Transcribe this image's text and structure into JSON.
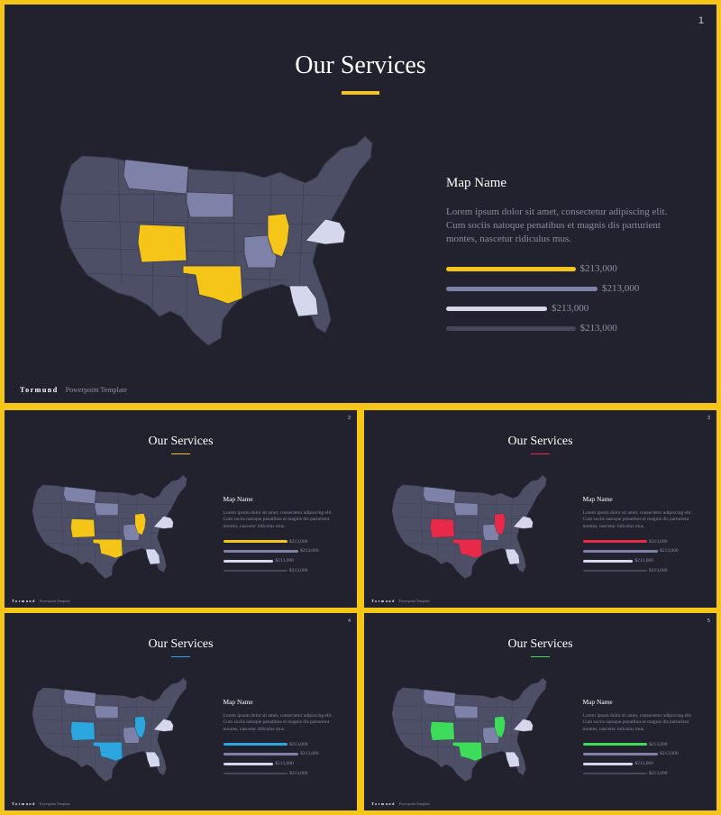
{
  "colors": {
    "background": "#f5c518",
    "slide_bg": "#21222e",
    "state_base": "#4d4f66",
    "state_border": "#393b4f",
    "state_muted": "#7f82a8",
    "state_light": "#d5d8ec",
    "bar_muted": "#7f82a8",
    "bar_light": "#d5d8ec",
    "bar_dark": "#464859"
  },
  "slides": [
    {
      "number": "1",
      "title": "Our Services",
      "accent": "#f5c518",
      "map_name": "Map Name",
      "description": "Lorem ipsum dolor sit amet, consectetur adipiscing elit. Cum sociis natoque penatibus et magnis dis parturient montes, nascetur ridiculus mus.",
      "bars": [
        {
          "value": "$213,000",
          "fraction": 0.82,
          "color": "accent"
        },
        {
          "value": "$213,000",
          "fraction": 0.96,
          "color": "muted"
        },
        {
          "value": "$213,000",
          "fraction": 0.64,
          "color": "light"
        },
        {
          "value": "$213,000",
          "fraction": 0.82,
          "color": "dark"
        }
      ],
      "brand": "Tormund",
      "brand_sub": "Powerpoint Template"
    },
    {
      "number": "2",
      "title": "Our Services",
      "accent": "#f5c518",
      "map_name": "Map Name",
      "description": "Lorem ipsum dolor sit amet, consectetur adipiscing elit. Cum sociis natoque penatibus et magnis dis parturient montes, nascetur ridiculus mus.",
      "bars": [
        {
          "value": "$213,000",
          "fraction": 0.82,
          "color": "accent"
        },
        {
          "value": "$213,000",
          "fraction": 0.96,
          "color": "muted"
        },
        {
          "value": "$213,000",
          "fraction": 0.64,
          "color": "light"
        },
        {
          "value": "$213,000",
          "fraction": 0.82,
          "color": "dark"
        }
      ],
      "brand": "Tormund",
      "brand_sub": "Powerpoint Template"
    },
    {
      "number": "3",
      "title": "Our Services",
      "accent": "#e8294a",
      "map_name": "Map Name",
      "description": "Lorem ipsum dolor sit amet, consectetur adipiscing elit. Cum sociis natoque penatibus et magnis dis parturient montes, nascetur ridiculus mus.",
      "bars": [
        {
          "value": "$213,000",
          "fraction": 0.82,
          "color": "accent"
        },
        {
          "value": "$213,000",
          "fraction": 0.96,
          "color": "muted"
        },
        {
          "value": "$213,000",
          "fraction": 0.64,
          "color": "light"
        },
        {
          "value": "$213,000",
          "fraction": 0.82,
          "color": "dark"
        }
      ],
      "brand": "Tormund",
      "brand_sub": "Powerpoint Template"
    },
    {
      "number": "4",
      "title": "Our Services",
      "accent": "#2ba6de",
      "map_name": "Map Name",
      "description": "Lorem ipsum dolor sit amet, consectetur adipiscing elit. Cum sociis natoque penatibus et magnis dis parturient montes, nascetur ridiculus mus.",
      "bars": [
        {
          "value": "$213,000",
          "fraction": 0.82,
          "color": "accent"
        },
        {
          "value": "$213,000",
          "fraction": 0.96,
          "color": "muted"
        },
        {
          "value": "$213,000",
          "fraction": 0.64,
          "color": "light"
        },
        {
          "value": "$213,000",
          "fraction": 0.82,
          "color": "dark"
        }
      ],
      "brand": "Tormund",
      "brand_sub": "Powerpoint Template"
    },
    {
      "number": "5",
      "title": "Our Services",
      "accent": "#3ddc5a",
      "map_name": "Map Name",
      "description": "Lorem ipsum dolor sit amet, consectetur adipiscing elit. Cum sociis natoque penatibus et magnis dis parturient montes, nascetur ridiculus mus.",
      "bars": [
        {
          "value": "$213,000",
          "fraction": 0.82,
          "color": "accent"
        },
        {
          "value": "$213,000",
          "fraction": 0.96,
          "color": "muted"
        },
        {
          "value": "$213,000",
          "fraction": 0.64,
          "color": "light"
        },
        {
          "value": "$213,000",
          "fraction": 0.82,
          "color": "dark"
        }
      ],
      "brand": "Tormund",
      "brand_sub": "Powerpoint Template"
    }
  ]
}
